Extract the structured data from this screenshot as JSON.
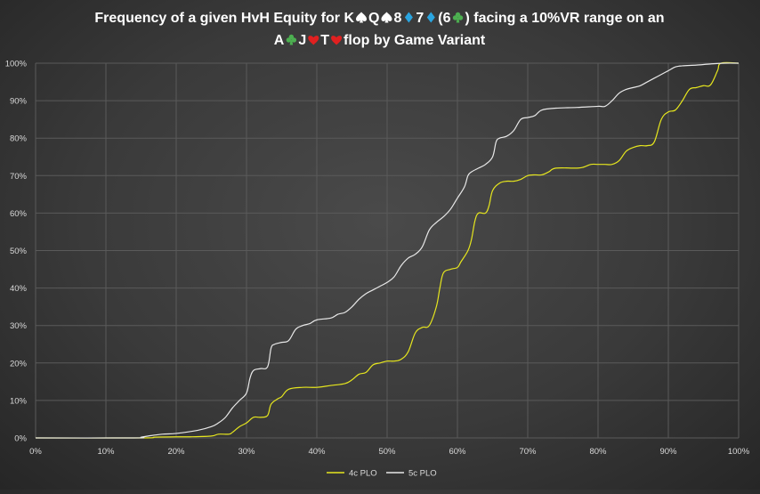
{
  "chart_data": {
    "type": "line",
    "title_line1_prefix": "Frequency of a given HvH Equity for K",
    "title_line1_cards": [
      {
        "rank": "",
        "suit": "spade-icon",
        "color": "#ffffff"
      },
      {
        "rank": "Q",
        "suit": "spade-icon",
        "color": "#ffffff"
      },
      {
        "rank": "8",
        "suit": "diamond-icon",
        "color": "#2aa5e0"
      },
      {
        "rank": "7",
        "suit": "diamond-icon",
        "color": "#2aa5e0"
      }
    ],
    "title_line1_paren_open": "(6",
    "title_line1_paren_suit": {
      "suit": "club-icon",
      "color": "#4caf50"
    },
    "title_line1_suffix": ") facing a 10%VR range on an",
    "title_line2_cards": [
      {
        "rank": "A",
        "suit": "club-icon",
        "color": "#4caf50"
      },
      {
        "rank": "J",
        "suit": "heart-icon",
        "color": "#e02020"
      },
      {
        "rank": "T",
        "suit": "heart-icon",
        "color": "#e02020"
      }
    ],
    "title_line2_suffix": "flop by Game Variant",
    "xlim": [
      0,
      100
    ],
    "ylim": [
      0,
      100
    ],
    "x_ticks": [
      "0%",
      "10%",
      "20%",
      "30%",
      "40%",
      "50%",
      "60%",
      "70%",
      "80%",
      "90%",
      "100%"
    ],
    "y_ticks": [
      "0%",
      "10%",
      "20%",
      "30%",
      "40%",
      "50%",
      "60%",
      "70%",
      "80%",
      "90%",
      "100%"
    ],
    "grid": true,
    "legend_position": "bottom",
    "series": [
      {
        "name": "4c PLO",
        "color": "#e6e61e",
        "points": [
          [
            0,
            0
          ],
          [
            15,
            0
          ],
          [
            17,
            0.2
          ],
          [
            20,
            0.3
          ],
          [
            22,
            0.3
          ],
          [
            25,
            0.5
          ],
          [
            26,
            1
          ],
          [
            27.5,
            1
          ],
          [
            28,
            1.5
          ],
          [
            29,
            3
          ],
          [
            30,
            4
          ],
          [
            31,
            5.5
          ],
          [
            32,
            5.5
          ],
          [
            33,
            6
          ],
          [
            33.5,
            9
          ],
          [
            34.5,
            10.5
          ],
          [
            35,
            11
          ],
          [
            36,
            13
          ],
          [
            38,
            13.5
          ],
          [
            40,
            13.5
          ],
          [
            42,
            14
          ],
          [
            44,
            14.5
          ],
          [
            45,
            15.5
          ],
          [
            46,
            17
          ],
          [
            47,
            17.5
          ],
          [
            48,
            19.5
          ],
          [
            49,
            20
          ],
          [
            50,
            20.5
          ],
          [
            51,
            20.5
          ],
          [
            52,
            21
          ],
          [
            53,
            23
          ],
          [
            54,
            28
          ],
          [
            55,
            29.5
          ],
          [
            56,
            30
          ],
          [
            57,
            35
          ],
          [
            57.5,
            40
          ],
          [
            58,
            44
          ],
          [
            59,
            45
          ],
          [
            60,
            45.5
          ],
          [
            60.5,
            47
          ],
          [
            61.5,
            50
          ],
          [
            62,
            53
          ],
          [
            62.5,
            58
          ],
          [
            63,
            60
          ],
          [
            64,
            60
          ],
          [
            64.5,
            62
          ],
          [
            65,
            66
          ],
          [
            66,
            68
          ],
          [
            67,
            68.5
          ],
          [
            68,
            68.5
          ],
          [
            69,
            69
          ],
          [
            70,
            70
          ],
          [
            71,
            70.2
          ],
          [
            72,
            70.2
          ],
          [
            73,
            71
          ],
          [
            74,
            72
          ],
          [
            77,
            72
          ],
          [
            78,
            72.3
          ],
          [
            79,
            73
          ],
          [
            80,
            73
          ],
          [
            81,
            73
          ],
          [
            82,
            73
          ],
          [
            83,
            74
          ],
          [
            84,
            76.5
          ],
          [
            85,
            77.5
          ],
          [
            86,
            78
          ],
          [
            87,
            78
          ],
          [
            88,
            79
          ],
          [
            89,
            85
          ],
          [
            90,
            87
          ],
          [
            91,
            87.5
          ],
          [
            92,
            90
          ],
          [
            93,
            93
          ],
          [
            94,
            93.5
          ],
          [
            95,
            94
          ],
          [
            96,
            94.2
          ],
          [
            97,
            98
          ],
          [
            97.5,
            100
          ],
          [
            100,
            100
          ]
        ]
      },
      {
        "name": "5c PLO",
        "color": "#e8e8e8",
        "points": [
          [
            0,
            0
          ],
          [
            14,
            0
          ],
          [
            15,
            0.2
          ],
          [
            16,
            0.5
          ],
          [
            18,
            1
          ],
          [
            20,
            1.2
          ],
          [
            23,
            2
          ],
          [
            25,
            3
          ],
          [
            26,
            4
          ],
          [
            27,
            5.5
          ],
          [
            28,
            8
          ],
          [
            29,
            10
          ],
          [
            30,
            12
          ],
          [
            30.5,
            16
          ],
          [
            31,
            18
          ],
          [
            32,
            18.5
          ],
          [
            33,
            19
          ],
          [
            33.5,
            24
          ],
          [
            34,
            25
          ],
          [
            35,
            25.5
          ],
          [
            36,
            26
          ],
          [
            37,
            29
          ],
          [
            38,
            30
          ],
          [
            39,
            30.5
          ],
          [
            40,
            31.5
          ],
          [
            42,
            32
          ],
          [
            43,
            33
          ],
          [
            44,
            33.5
          ],
          [
            45,
            35
          ],
          [
            46,
            37
          ],
          [
            47,
            38.5
          ],
          [
            48,
            39.5
          ],
          [
            49,
            40.5
          ],
          [
            50,
            41.5
          ],
          [
            51,
            43
          ],
          [
            52,
            46
          ],
          [
            53,
            48
          ],
          [
            54,
            49
          ],
          [
            55,
            51
          ],
          [
            56,
            55.5
          ],
          [
            57,
            57.5
          ],
          [
            58,
            59
          ],
          [
            59,
            61
          ],
          [
            60,
            64
          ],
          [
            61,
            67
          ],
          [
            61.5,
            70
          ],
          [
            62,
            71
          ],
          [
            63,
            72
          ],
          [
            64,
            73
          ],
          [
            65,
            75
          ],
          [
            65.5,
            79
          ],
          [
            66,
            80
          ],
          [
            67,
            80.5
          ],
          [
            68,
            82
          ],
          [
            69,
            85
          ],
          [
            70,
            85.5
          ],
          [
            71,
            86
          ],
          [
            72,
            87.5
          ],
          [
            74,
            88
          ],
          [
            77,
            88.2
          ],
          [
            80,
            88.5
          ],
          [
            81,
            88.5
          ],
          [
            82,
            90
          ],
          [
            83,
            92
          ],
          [
            84,
            93
          ],
          [
            85,
            93.5
          ],
          [
            86,
            94
          ],
          [
            87,
            95
          ],
          [
            88,
            96
          ],
          [
            89,
            97
          ],
          [
            90,
            98
          ],
          [
            91,
            99
          ],
          [
            92,
            99.3
          ],
          [
            94,
            99.5
          ],
          [
            96,
            99.8
          ],
          [
            98,
            100
          ],
          [
            100,
            100
          ]
        ]
      }
    ]
  }
}
